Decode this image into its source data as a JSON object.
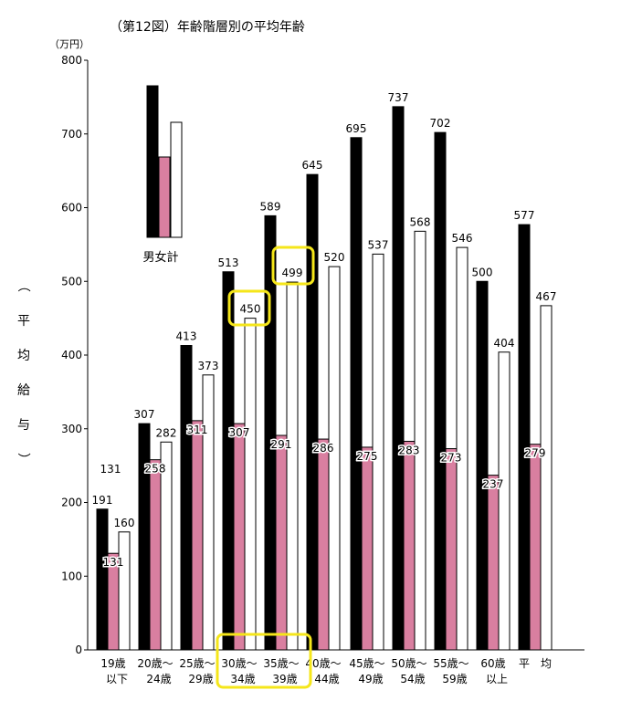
{
  "chart_data": {
    "type": "bar",
    "title": "（第12図）年齢階層別の平均年齢",
    "unit": "（万円）",
    "ylabel": "（平均給与）",
    "ylim": [
      0,
      800
    ],
    "yticks": [
      0,
      100,
      200,
      300,
      400,
      500,
      600,
      700,
      800
    ],
    "grid": false,
    "legend_label": "男女計",
    "categories": [
      [
        "19歳",
        "以下"
      ],
      [
        "20歳～",
        "24歳"
      ],
      [
        "25歳～",
        "29歳"
      ],
      [
        "30歳～",
        "34歳"
      ],
      [
        "35歳～",
        "39歳"
      ],
      [
        "40歳～",
        "44歳"
      ],
      [
        "45歳～",
        "49歳"
      ],
      [
        "50歳～",
        "54歳"
      ],
      [
        "55歳～",
        "59歳"
      ],
      [
        "60歳",
        "以上"
      ],
      [
        "平　均",
        ""
      ]
    ],
    "series": [
      {
        "color": "#000000",
        "values": [
          191,
          307,
          413,
          513,
          589,
          645,
          695,
          737,
          702,
          500,
          577
        ]
      },
      {
        "color": "#d97fa0",
        "values": [
          131,
          258,
          311,
          307,
          291,
          286,
          275,
          283,
          273,
          237,
          279
        ]
      },
      {
        "color": "#ffffff",
        "values": [
          160,
          282,
          373,
          450,
          499,
          520,
          537,
          568,
          546,
          404,
          467
        ]
      }
    ],
    "extra_labels": [
      "131"
    ],
    "highlights": [
      "450",
      "499",
      "30歳～34歳・35歳～39歳"
    ]
  }
}
